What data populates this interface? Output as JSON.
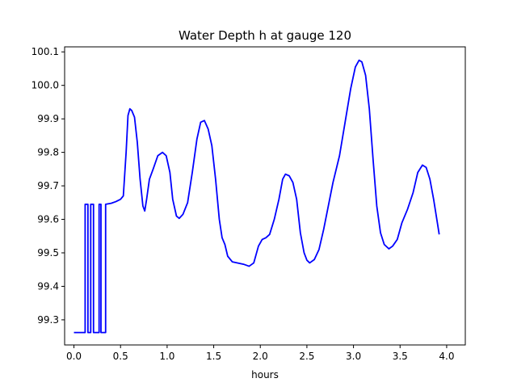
{
  "chart_data": {
    "type": "line",
    "title": "Water Depth h at gauge 120",
    "xlabel": "hours",
    "ylabel": "",
    "xlim": [
      -0.1,
      4.2
    ],
    "ylim": [
      99.225,
      100.115
    ],
    "xticks": [
      0.0,
      0.5,
      1.0,
      1.5,
      2.0,
      2.5,
      3.0,
      3.5,
      4.0
    ],
    "xtick_labels": [
      "0.0",
      "0.5",
      "1.0",
      "1.5",
      "2.0",
      "2.5",
      "3.0",
      "3.5",
      "4.0"
    ],
    "yticks": [
      99.3,
      99.4,
      99.5,
      99.6,
      99.7,
      99.8,
      99.9,
      100.0,
      100.1
    ],
    "ytick_labels": [
      "99.3",
      "99.4",
      "99.5",
      "99.6",
      "99.7",
      "99.8",
      "99.9",
      "100.0",
      "100.1"
    ],
    "grid": false,
    "series": [
      {
        "name": "",
        "color": "#0000ff",
        "points": [
          [
            0.0,
            99.262
          ],
          [
            0.12,
            99.262
          ],
          [
            0.12,
            99.645
          ],
          [
            0.15,
            99.645
          ],
          [
            0.15,
            99.262
          ],
          [
            0.18,
            99.262
          ],
          [
            0.18,
            99.645
          ],
          [
            0.21,
            99.645
          ],
          [
            0.21,
            99.262
          ],
          [
            0.27,
            99.262
          ],
          [
            0.27,
            99.645
          ],
          [
            0.29,
            99.645
          ],
          [
            0.29,
            99.262
          ],
          [
            0.34,
            99.262
          ],
          [
            0.34,
            99.645
          ],
          [
            0.4,
            99.648
          ],
          [
            0.45,
            99.653
          ],
          [
            0.5,
            99.66
          ],
          [
            0.53,
            99.67
          ],
          [
            0.56,
            99.8
          ],
          [
            0.58,
            99.91
          ],
          [
            0.6,
            99.93
          ],
          [
            0.62,
            99.925
          ],
          [
            0.65,
            99.905
          ],
          [
            0.68,
            99.83
          ],
          [
            0.71,
            99.72
          ],
          [
            0.74,
            99.64
          ],
          [
            0.76,
            99.625
          ],
          [
            0.78,
            99.66
          ],
          [
            0.81,
            99.72
          ],
          [
            0.85,
            99.75
          ],
          [
            0.9,
            99.79
          ],
          [
            0.95,
            99.8
          ],
          [
            0.99,
            99.79
          ],
          [
            1.03,
            99.74
          ],
          [
            1.06,
            99.66
          ],
          [
            1.1,
            99.61
          ],
          [
            1.13,
            99.603
          ],
          [
            1.17,
            99.615
          ],
          [
            1.22,
            99.65
          ],
          [
            1.27,
            99.74
          ],
          [
            1.32,
            99.84
          ],
          [
            1.36,
            99.89
          ],
          [
            1.4,
            99.895
          ],
          [
            1.44,
            99.87
          ],
          [
            1.48,
            99.82
          ],
          [
            1.52,
            99.72
          ],
          [
            1.56,
            99.6
          ],
          [
            1.59,
            99.545
          ],
          [
            1.62,
            99.525
          ],
          [
            1.65,
            99.49
          ],
          [
            1.7,
            99.473
          ],
          [
            1.75,
            99.47
          ],
          [
            1.82,
            99.466
          ],
          [
            1.88,
            99.46
          ],
          [
            1.93,
            99.47
          ],
          [
            1.98,
            99.52
          ],
          [
            2.02,
            99.54
          ],
          [
            2.06,
            99.545
          ],
          [
            2.1,
            99.555
          ],
          [
            2.15,
            99.6
          ],
          [
            2.2,
            99.66
          ],
          [
            2.24,
            99.72
          ],
          [
            2.27,
            99.735
          ],
          [
            2.31,
            99.73
          ],
          [
            2.35,
            99.71
          ],
          [
            2.39,
            99.66
          ],
          [
            2.43,
            99.56
          ],
          [
            2.47,
            99.5
          ],
          [
            2.5,
            99.478
          ],
          [
            2.53,
            99.47
          ],
          [
            2.58,
            99.48
          ],
          [
            2.63,
            99.51
          ],
          [
            2.68,
            99.57
          ],
          [
            2.73,
            99.64
          ],
          [
            2.78,
            99.71
          ],
          [
            2.85,
            99.79
          ],
          [
            2.91,
            99.89
          ],
          [
            2.97,
            99.99
          ],
          [
            3.02,
            100.055
          ],
          [
            3.06,
            100.075
          ],
          [
            3.09,
            100.07
          ],
          [
            3.13,
            100.03
          ],
          [
            3.17,
            99.93
          ],
          [
            3.21,
            99.78
          ],
          [
            3.25,
            99.64
          ],
          [
            3.29,
            99.56
          ],
          [
            3.33,
            99.525
          ],
          [
            3.38,
            99.512
          ],
          [
            3.42,
            99.52
          ],
          [
            3.47,
            99.54
          ],
          [
            3.52,
            99.59
          ],
          [
            3.58,
            99.63
          ],
          [
            3.64,
            99.68
          ],
          [
            3.69,
            99.74
          ],
          [
            3.74,
            99.762
          ],
          [
            3.78,
            99.755
          ],
          [
            3.82,
            99.72
          ],
          [
            3.86,
            99.66
          ],
          [
            3.9,
            99.59
          ],
          [
            3.92,
            99.555
          ]
        ]
      }
    ]
  }
}
